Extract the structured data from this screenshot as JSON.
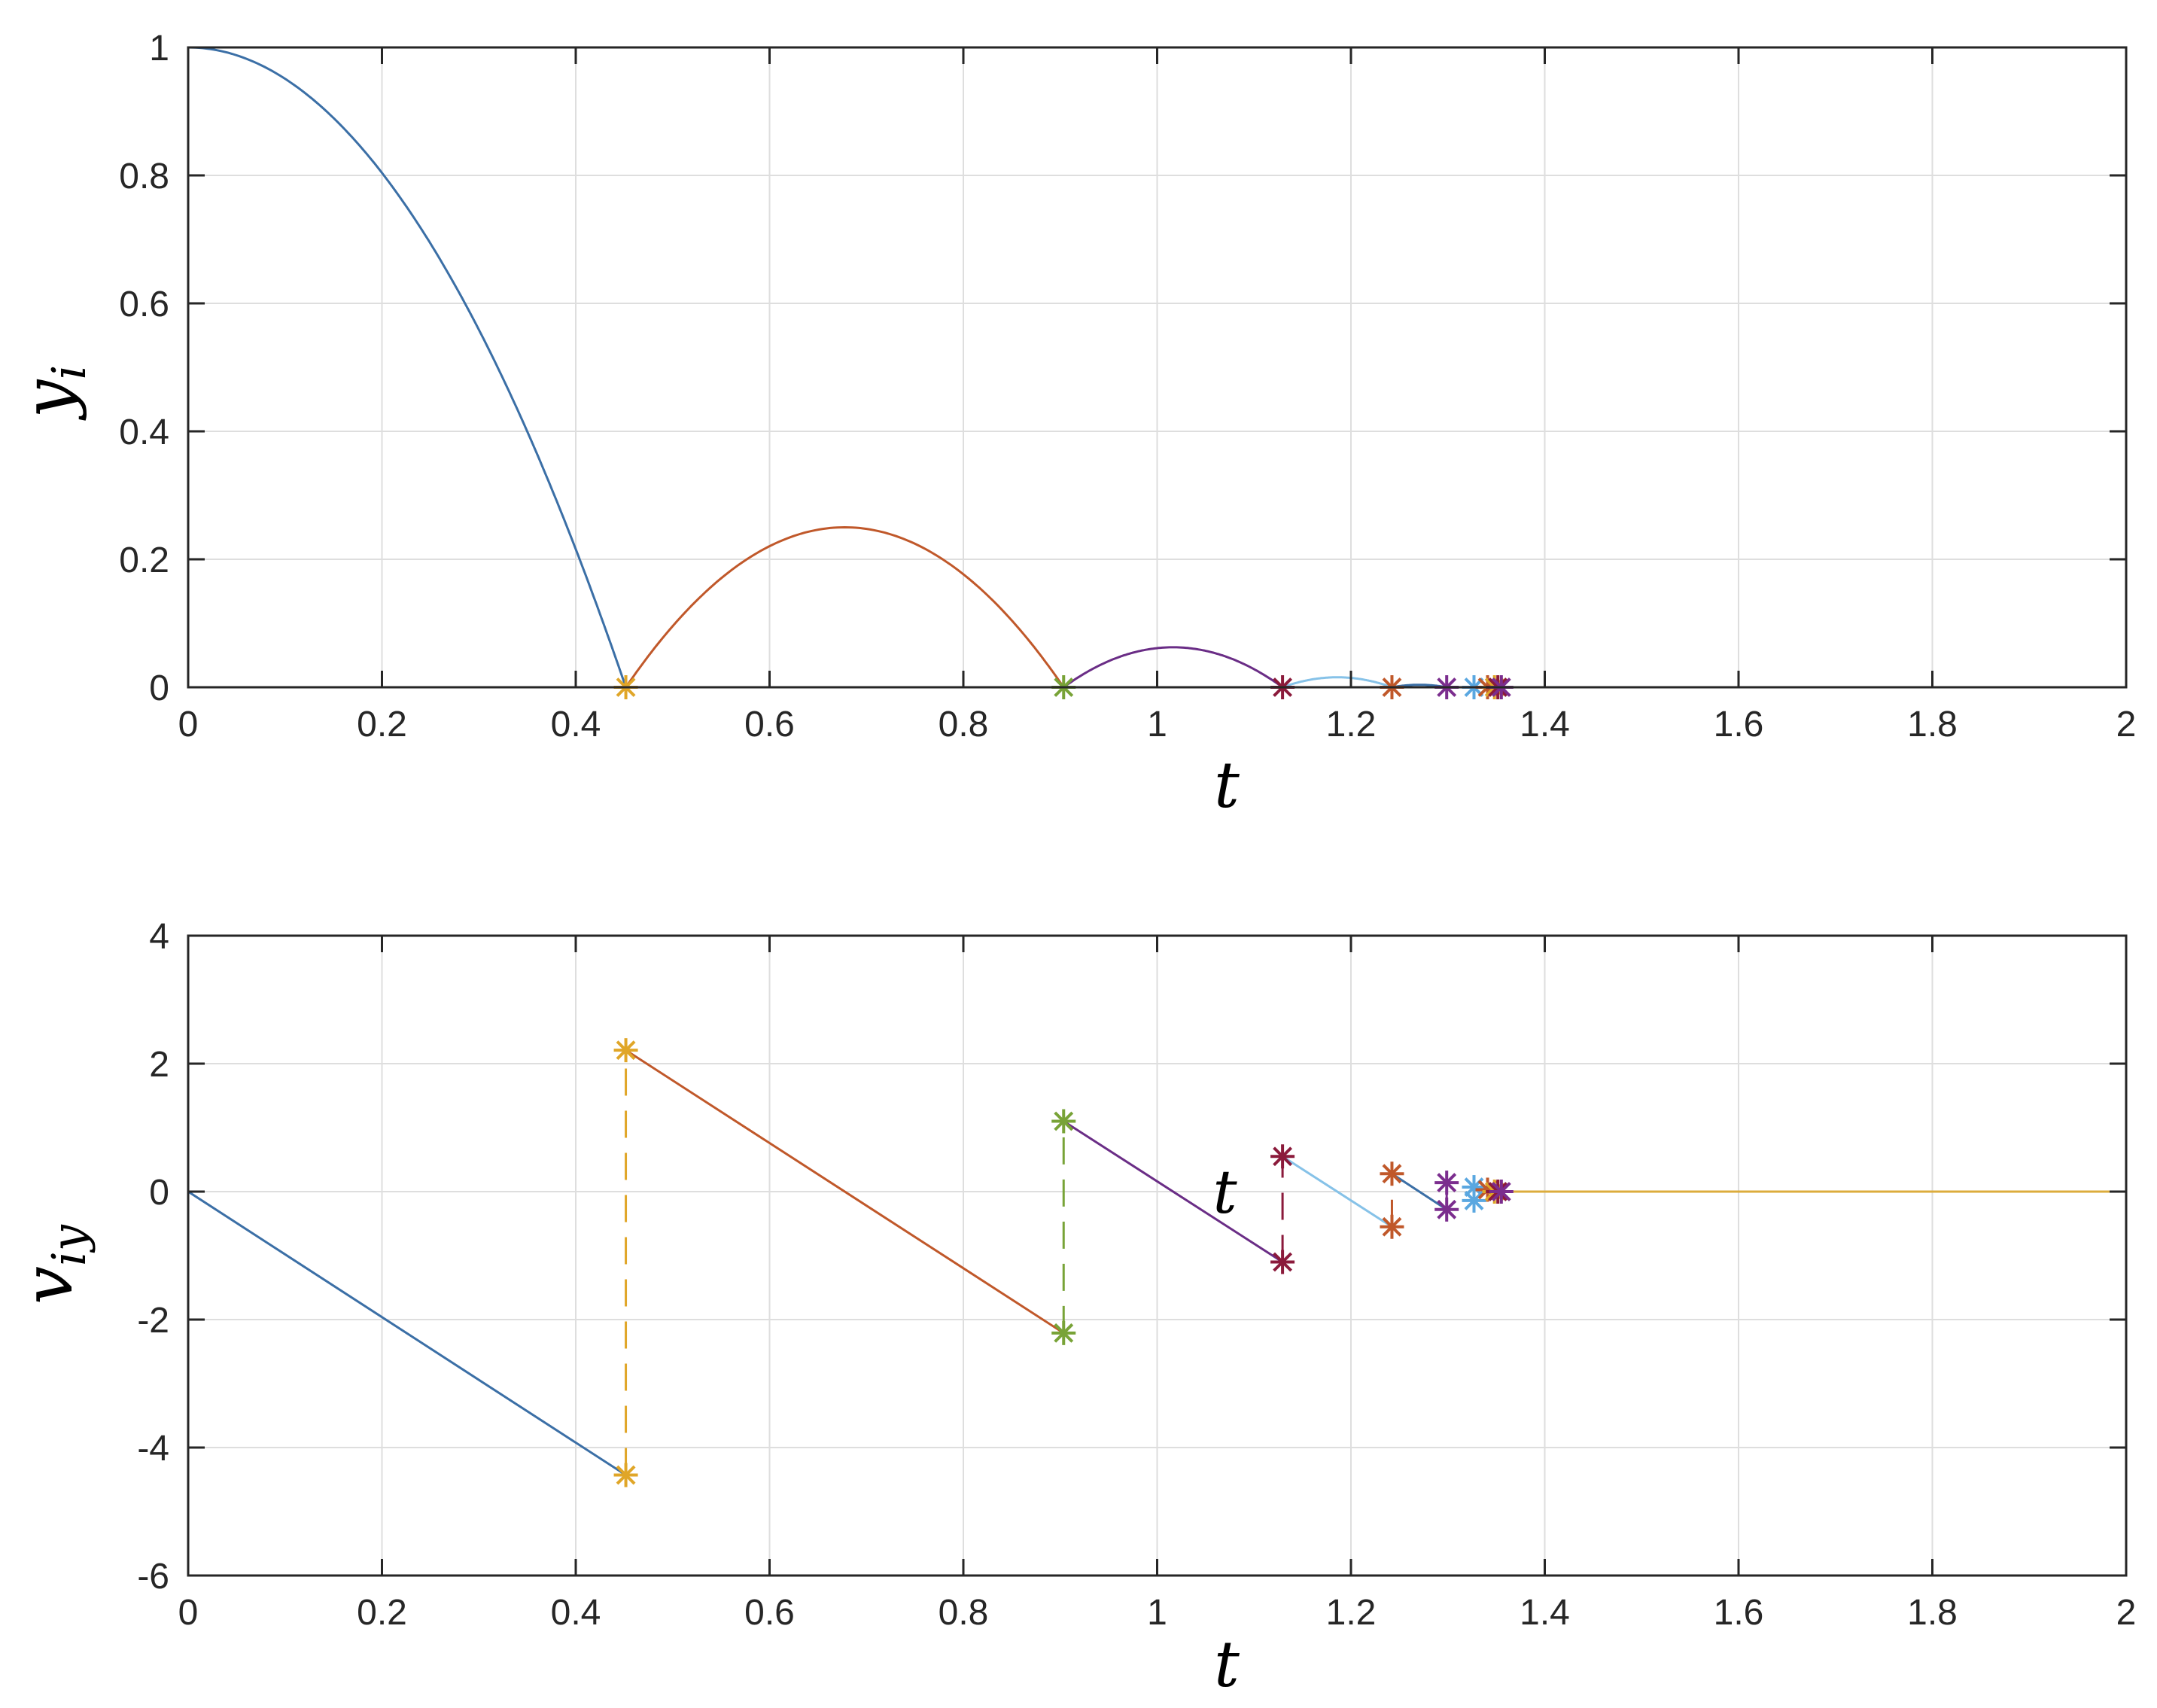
{
  "chart_data": [
    {
      "type": "line",
      "xlabel": "t",
      "ylabel": "y",
      "ylabel_sub": "i",
      "xlim": [
        0,
        2
      ],
      "ylim": [
        0,
        1
      ],
      "grid": true,
      "xticks": [
        0,
        0.2,
        0.4,
        0.6,
        0.8,
        1,
        1.2,
        1.4,
        1.6,
        1.8,
        2
      ],
      "xtick_labels": [
        "0",
        "0.2",
        "0.4",
        "0.6",
        "0.8",
        "1",
        "1.2",
        "1.4",
        "1.6",
        "1.8",
        "2"
      ],
      "yticks": [
        0,
        0.2,
        0.4,
        0.6,
        0.8,
        1
      ],
      "ytick_labels": [
        "0",
        "0.2",
        "0.4",
        "0.6",
        "0.8",
        "1"
      ],
      "series": [
        {
          "color": "#3b6fa6",
          "arc": [
            0,
            0.4517,
            1,
            0
          ]
        },
        {
          "color": "#c0582a",
          "arc": [
            0.4517,
            0.9035,
            0,
            0.25
          ]
        },
        {
          "color": "#6a2d86",
          "arc": [
            0.9035,
            1.1294,
            0,
            0.0625
          ]
        },
        {
          "color": "#86c2e8",
          "arc": [
            1.1294,
            1.2423,
            0,
            0.0156
          ]
        },
        {
          "color": "#3b6fa6",
          "arc": [
            1.2423,
            1.2988,
            0,
            0.0039
          ]
        },
        {
          "color": "#dcac3c",
          "arc": [
            1.3552,
            2.0,
            0,
            0
          ]
        }
      ],
      "markers": [
        {
          "t": 0.4517,
          "y": 0,
          "color": "#e0a628"
        },
        {
          "t": 0.9035,
          "y": 0,
          "color": "#78a337"
        },
        {
          "t": 1.1294,
          "y": 0,
          "color": "#8b1a3b"
        },
        {
          "t": 1.2423,
          "y": 0,
          "color": "#c0582a"
        },
        {
          "t": 1.2988,
          "y": 0,
          "color": "#7b2d8e"
        },
        {
          "t": 1.327,
          "y": 0,
          "color": "#5aa7e0"
        },
        {
          "t": 1.341,
          "y": 0,
          "color": "#c0582a"
        },
        {
          "t": 1.3481,
          "y": 0,
          "color": "#e0a628"
        },
        {
          "t": 1.3516,
          "y": 0,
          "color": "#8b1a3b"
        },
        {
          "t": 1.3552,
          "y": 0,
          "color": "#7b2d8e"
        }
      ]
    },
    {
      "type": "line",
      "xlabel": "t",
      "ylabel": "v",
      "ylabel_sub": "iy",
      "xlim": [
        0,
        2
      ],
      "ylim": [
        -6,
        4
      ],
      "grid": true,
      "xticks": [
        0,
        0.2,
        0.4,
        0.6,
        0.8,
        1,
        1.2,
        1.4,
        1.6,
        1.8,
        2
      ],
      "xtick_labels": [
        "0",
        "0.2",
        "0.4",
        "0.6",
        "0.8",
        "1",
        "1.2",
        "1.4",
        "1.6",
        "1.8",
        "2"
      ],
      "yticks": [
        -6,
        -4,
        -2,
        0,
        2,
        4
      ],
      "ytick_labels": [
        "-6",
        "-4",
        "-2",
        "0",
        "2",
        "4"
      ],
      "annotation": "t",
      "annotation_at": [
        1.07,
        0
      ],
      "segments": [
        {
          "color": "#3b6fa6",
          "from": [
            0,
            0
          ],
          "to": [
            0.4517,
            -4.43
          ]
        },
        {
          "color": "#c0582a",
          "from": [
            0.4517,
            2.21
          ],
          "to": [
            0.9035,
            -2.21
          ]
        },
        {
          "color": "#6a2d86",
          "from": [
            0.9035,
            1.1
          ],
          "to": [
            1.1294,
            -1.1
          ]
        },
        {
          "color": "#86c2e8",
          "from": [
            1.1294,
            0.55
          ],
          "to": [
            1.2423,
            -0.55
          ]
        },
        {
          "color": "#3b6fa6",
          "from": [
            1.2423,
            0.28
          ],
          "to": [
            1.2988,
            -0.28
          ]
        },
        {
          "color": "#dcac3c",
          "from": [
            1.3552,
            0
          ],
          "to": [
            2.0,
            0
          ]
        }
      ],
      "jumps": [
        {
          "color": "#e0a628",
          "t": 0.4517,
          "from": -4.43,
          "to": 2.21
        },
        {
          "color": "#78a337",
          "t": 0.9035,
          "from": -2.21,
          "to": 1.1
        },
        {
          "color": "#8b1a3b",
          "t": 1.1294,
          "from": -1.1,
          "to": 0.55
        },
        {
          "color": "#c0582a",
          "t": 1.2423,
          "from": -0.55,
          "to": 0.28
        },
        {
          "color": "#7b2d8e",
          "t": 1.2988,
          "from": -0.28,
          "to": 0.14
        }
      ],
      "markers": [
        {
          "t": 0.4517,
          "y": 2.21,
          "color": "#e0a628"
        },
        {
          "t": 0.4517,
          "y": -4.43,
          "color": "#e0a628"
        },
        {
          "t": 0.9035,
          "y": 1.1,
          "color": "#78a337"
        },
        {
          "t": 0.9035,
          "y": -2.21,
          "color": "#78a337"
        },
        {
          "t": 1.1294,
          "y": 0.55,
          "color": "#8b1a3b"
        },
        {
          "t": 1.1294,
          "y": -1.1,
          "color": "#8b1a3b"
        },
        {
          "t": 1.2423,
          "y": 0.28,
          "color": "#c0582a"
        },
        {
          "t": 1.2423,
          "y": -0.55,
          "color": "#c0582a"
        },
        {
          "t": 1.2988,
          "y": 0.14,
          "color": "#7b2d8e"
        },
        {
          "t": 1.2988,
          "y": -0.28,
          "color": "#7b2d8e"
        },
        {
          "t": 1.327,
          "y": 0.07,
          "color": "#5aa7e0"
        },
        {
          "t": 1.327,
          "y": -0.14,
          "color": "#5aa7e0"
        },
        {
          "t": 1.341,
          "y": 0.03,
          "color": "#c0582a"
        },
        {
          "t": 1.3481,
          "y": 0.0,
          "color": "#e0a628"
        },
        {
          "t": 1.3516,
          "y": 0.0,
          "color": "#8b1a3b"
        },
        {
          "t": 1.3552,
          "y": 0.0,
          "color": "#7b2d8e"
        }
      ]
    }
  ]
}
